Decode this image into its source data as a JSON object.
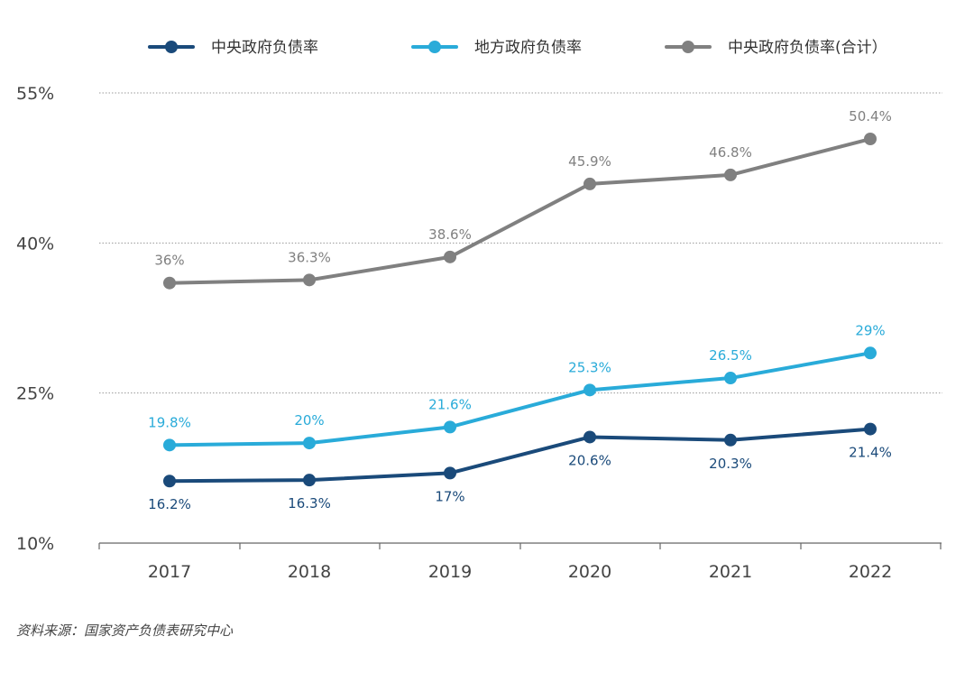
{
  "chart_data": {
    "type": "line",
    "categories": [
      "2017",
      "2018",
      "2019",
      "2020",
      "2021",
      "2022"
    ],
    "series": [
      {
        "name": "中央政府负债率",
        "color": "#1a4a7a",
        "values": [
          16.2,
          16.3,
          17,
          20.6,
          20.3,
          21.4
        ],
        "labels": [
          "16.2%",
          "16.3%",
          "17%",
          "20.6%",
          "20.3%",
          "21.4%"
        ],
        "label_position": "below"
      },
      {
        "name": "地方政府负债率",
        "color": "#29abd9",
        "values": [
          19.8,
          20,
          21.6,
          25.3,
          26.5,
          29
        ],
        "labels": [
          "19.8%",
          "20%",
          "21.6%",
          "25.3%",
          "26.5%",
          "29%"
        ],
        "label_position": "above"
      },
      {
        "name": "中央政府负债率(合计）",
        "color": "#808080",
        "values": [
          36,
          36.3,
          38.6,
          45.9,
          46.8,
          50.4
        ],
        "labels": [
          "36%",
          "36.3%",
          "38.6%",
          "45.9%",
          "46.8%",
          "50.4%"
        ],
        "label_position": "above"
      }
    ],
    "ylim": [
      10,
      55
    ],
    "yticks": [
      10,
      25,
      40,
      55
    ],
    "ytick_labels": [
      "10%",
      "25%",
      "40%",
      "55%"
    ],
    "grid": "dotted horizontal",
    "legend_position": "top",
    "xlabel": "",
    "ylabel": ""
  },
  "source": "资料来源：国家资产负债表研究中心"
}
